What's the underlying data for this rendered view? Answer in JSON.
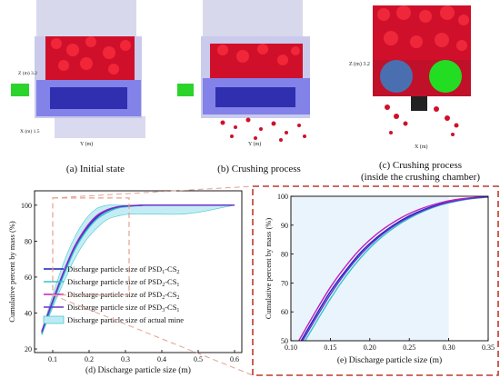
{
  "captions": {
    "a": "(a) Initial state",
    "b": "(b) Crushing process",
    "c_line1": "(c) Crushing process",
    "c_line2": "(inside the crushing chamber)",
    "d": "(d) Discharge particle size (m)",
    "e": "(e) Discharge particle size (m)"
  },
  "axis_text": {
    "a_z": "Z (m) 3.2",
    "a_x": "X (m) 1.5",
    "a_y": "Y (m)",
    "b_y": "Y (m)",
    "c_z": "Z (m) 3.2",
    "c_x": "X (m)"
  },
  "colors": {
    "psd1_cs2": "#1f1fbf",
    "psd2_cs1": "#33c6c6",
    "psd2_cs2": "#c020c0",
    "psd3_cs1": "#6633cc",
    "band_fill": "#bfeaf5",
    "dashed_frame": "#c0392b"
  },
  "chart_data": [
    {
      "type": "line",
      "title": "",
      "xlabel": "",
      "ylabel": "Cumulative percent by mass (%)",
      "xlim": [
        0.05,
        0.62
      ],
      "ylim": [
        18,
        108
      ],
      "xticks": [
        "0.1",
        "0.2",
        "0.3",
        "0.4",
        "0.5",
        "0.6"
      ],
      "yticks": [
        "20",
        "40",
        "60",
        "80",
        "100"
      ],
      "legend_position": "bottom-left",
      "legend": [
        {
          "label": "Discharge particle size of PSD",
          "sub": "1",
          "mid": "-CS",
          "sub2": "2"
        },
        {
          "label": "Discharge particle size of PSD",
          "sub": "2",
          "mid": "-CS",
          "sub2": "1"
        },
        {
          "label": "Discharge particle size of PSD",
          "sub": "2",
          "mid": "-CS",
          "sub2": "2"
        },
        {
          "label": "Discharge particle size of PSD",
          "sub": "3",
          "mid": "-CS",
          "sub2": "1"
        },
        {
          "label": "Discharge particle size of actual mine",
          "sub": "",
          "mid": "",
          "sub2": ""
        }
      ],
      "band": {
        "x": [
          0.07,
          0.1,
          0.13,
          0.16,
          0.19,
          0.22,
          0.25,
          0.28,
          0.31,
          0.35,
          0.4,
          0.45,
          0.5,
          0.55,
          0.6
        ],
        "lower": [
          28,
          43,
          57,
          70,
          80,
          87,
          92,
          94,
          95,
          95,
          95,
          95,
          96,
          98,
          100
        ],
        "upper": [
          30,
          50,
          68,
          82,
          92,
          98,
          100,
          100,
          100,
          100,
          100,
          100,
          100,
          100,
          100
        ]
      },
      "series": [
        {
          "name": "PSD1-CS2",
          "x": [
            0.07,
            0.1,
            0.13,
            0.16,
            0.19,
            0.22,
            0.25,
            0.28,
            0.31,
            0.35,
            0.4,
            0.5,
            0.6
          ],
          "y": [
            29,
            46,
            62,
            76,
            86,
            93,
            97,
            99,
            99.5,
            100,
            100,
            100,
            100
          ]
        },
        {
          "name": "PSD2-CS1",
          "x": [
            0.07,
            0.1,
            0.13,
            0.16,
            0.19,
            0.22,
            0.25,
            0.28,
            0.31,
            0.35,
            0.4,
            0.5,
            0.6
          ],
          "y": [
            28,
            45,
            61,
            75,
            85,
            92,
            96,
            98.5,
            99.3,
            100,
            100,
            100,
            100
          ]
        },
        {
          "name": "PSD2-CS2",
          "x": [
            0.07,
            0.1,
            0.13,
            0.16,
            0.19,
            0.22,
            0.25,
            0.28,
            0.31,
            0.35,
            0.4,
            0.5,
            0.6
          ],
          "y": [
            30,
            47,
            63,
            77,
            87,
            94,
            97.5,
            99.2,
            99.7,
            100,
            100,
            100,
            100
          ]
        },
        {
          "name": "PSD3-CS1",
          "x": [
            0.07,
            0.1,
            0.13,
            0.16,
            0.19,
            0.22,
            0.25,
            0.28,
            0.31,
            0.35,
            0.4,
            0.5,
            0.6
          ],
          "y": [
            29.5,
            46.5,
            62.5,
            76.5,
            86.5,
            93.5,
            97.2,
            99,
            99.6,
            100,
            100,
            100,
            100
          ]
        }
      ]
    },
    {
      "type": "line",
      "title": "",
      "xlabel": "",
      "ylabel": "Cumulative percent by mass (%)",
      "xlim": [
        0.1,
        0.35
      ],
      "ylim": [
        50,
        100
      ],
      "xticks": [
        "0.10",
        "0.15",
        "0.20",
        "0.25",
        "0.30",
        "0.35"
      ],
      "yticks": [
        "50",
        "60",
        "70",
        "80",
        "90",
        "100"
      ],
      "band_xlim": [
        0.1,
        0.3
      ],
      "series": [
        {
          "name": "PSD1-CS2",
          "x": [
            0.113,
            0.13,
            0.15,
            0.17,
            0.19,
            0.21,
            0.23,
            0.25,
            0.27,
            0.29,
            0.31,
            0.33,
            0.35
          ],
          "y": [
            50,
            58,
            67,
            74.5,
            81,
            86,
            90,
            93.2,
            95.6,
            97.4,
            98.6,
            99.4,
            99.8
          ]
        },
        {
          "name": "PSD2-CS1",
          "x": [
            0.118,
            0.13,
            0.15,
            0.17,
            0.19,
            0.21,
            0.23,
            0.25,
            0.27,
            0.29,
            0.31,
            0.33,
            0.35
          ],
          "y": [
            50,
            55.5,
            64.5,
            72.5,
            79.2,
            84.7,
            89,
            92.4,
            95,
            97,
            98.3,
            99.2,
            99.7
          ]
        },
        {
          "name": "PSD2-CS2",
          "x": [
            0.11,
            0.13,
            0.15,
            0.17,
            0.19,
            0.21,
            0.23,
            0.25,
            0.27,
            0.29,
            0.31,
            0.33,
            0.35
          ],
          "y": [
            50,
            59.5,
            68.5,
            76,
            82.3,
            87.2,
            91,
            94,
            96.2,
            97.8,
            98.9,
            99.5,
            99.8
          ]
        },
        {
          "name": "PSD3-CS1",
          "x": [
            0.115,
            0.13,
            0.15,
            0.17,
            0.19,
            0.21,
            0.23,
            0.25,
            0.27,
            0.29,
            0.31,
            0.33,
            0.35
          ],
          "y": [
            50,
            57,
            66,
            73.8,
            80.3,
            85.5,
            89.6,
            92.8,
            95.3,
            97.2,
            98.5,
            99.3,
            99.8
          ]
        }
      ]
    }
  ]
}
